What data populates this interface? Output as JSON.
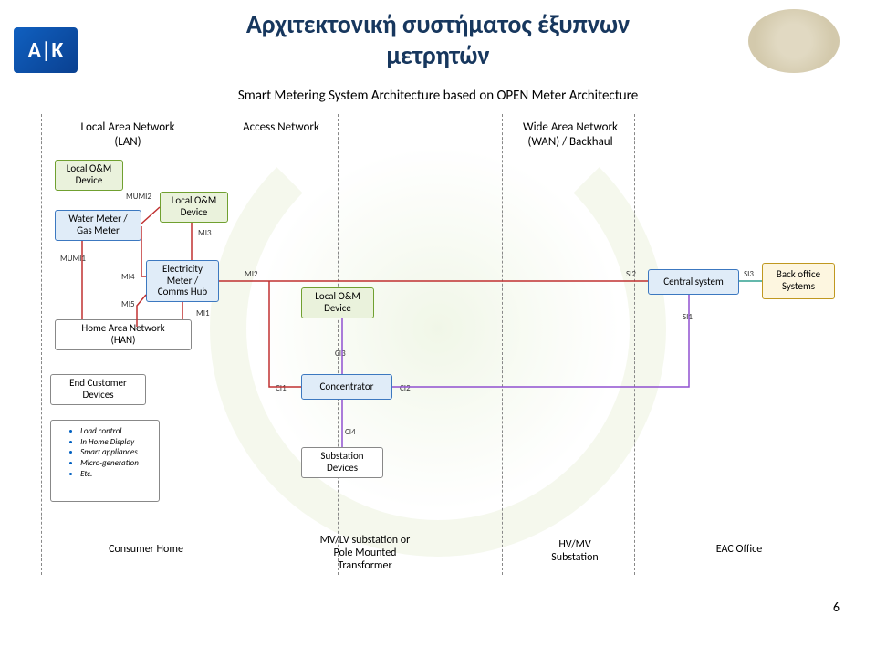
{
  "logo_text": "A|K",
  "title_line1": "Αρχιτεκτονική συστήματος έξυπνων",
  "title_line2": "μετρητών",
  "subtitle": "Smart Metering System Architecture based on OPEN Meter Architecture",
  "page_number": "6",
  "columns": {
    "lan": "Local Area Network\n(LAN)",
    "access": "Access Network",
    "wan": "Wide Area Network\n(WAN) / Backhaul"
  },
  "boxes": {
    "local_om_1": "Local O&M\nDevice",
    "water_gas": "Water Meter /\nGas Meter",
    "local_om_2": "Local O&M\nDevice",
    "elec_hub": "Electricity\nMeter /\nComms Hub",
    "han": "Home Area Network\n(HAN)",
    "end_cust": "End Customer\nDevices",
    "load_list": [
      "Load control",
      "In Home Display",
      "Smart appliances",
      "Micro-generation",
      "Etc."
    ],
    "local_om_3": "Local O&M\nDevice",
    "concentrator": "Concentrator",
    "substation": "Substation\nDevices",
    "central": "Central system",
    "backoffice": "Back office\nSystems"
  },
  "if_labels": {
    "mumi1": "MUMI1",
    "mumi2": "MUMI2",
    "mi1": "MI1",
    "mi2": "MI2",
    "mi3": "MI3",
    "mi4": "MI4",
    "mi5": "MI5",
    "ci1": "CI1",
    "ci2": "CI2",
    "ci3": "CI3",
    "ci4": "CI4",
    "si1": "SI1",
    "si2": "SI2",
    "si3": "SI3"
  },
  "bottom": {
    "consumer": "Consumer Home",
    "transformer": "MV/LV substation or\nPole Mounted\nTransformer",
    "hvmv": "HV/MV\nSubstation",
    "eac": "EAC Office"
  },
  "colors": {
    "title": "#17375e",
    "box_green_border": "#70a030",
    "box_green_fill": "#eaf2dc",
    "box_blue_border": "#3c78c0",
    "box_blue_fill": "#e0ecf8",
    "box_gold_border": "#c09820",
    "box_gold_fill": "#fdf6e0",
    "box_plain_border": "#888",
    "box_plain_fill": "#ffffff",
    "wire_red": "#c03030",
    "wire_purple": "#9050d0",
    "wire_teal": "#30a090"
  }
}
